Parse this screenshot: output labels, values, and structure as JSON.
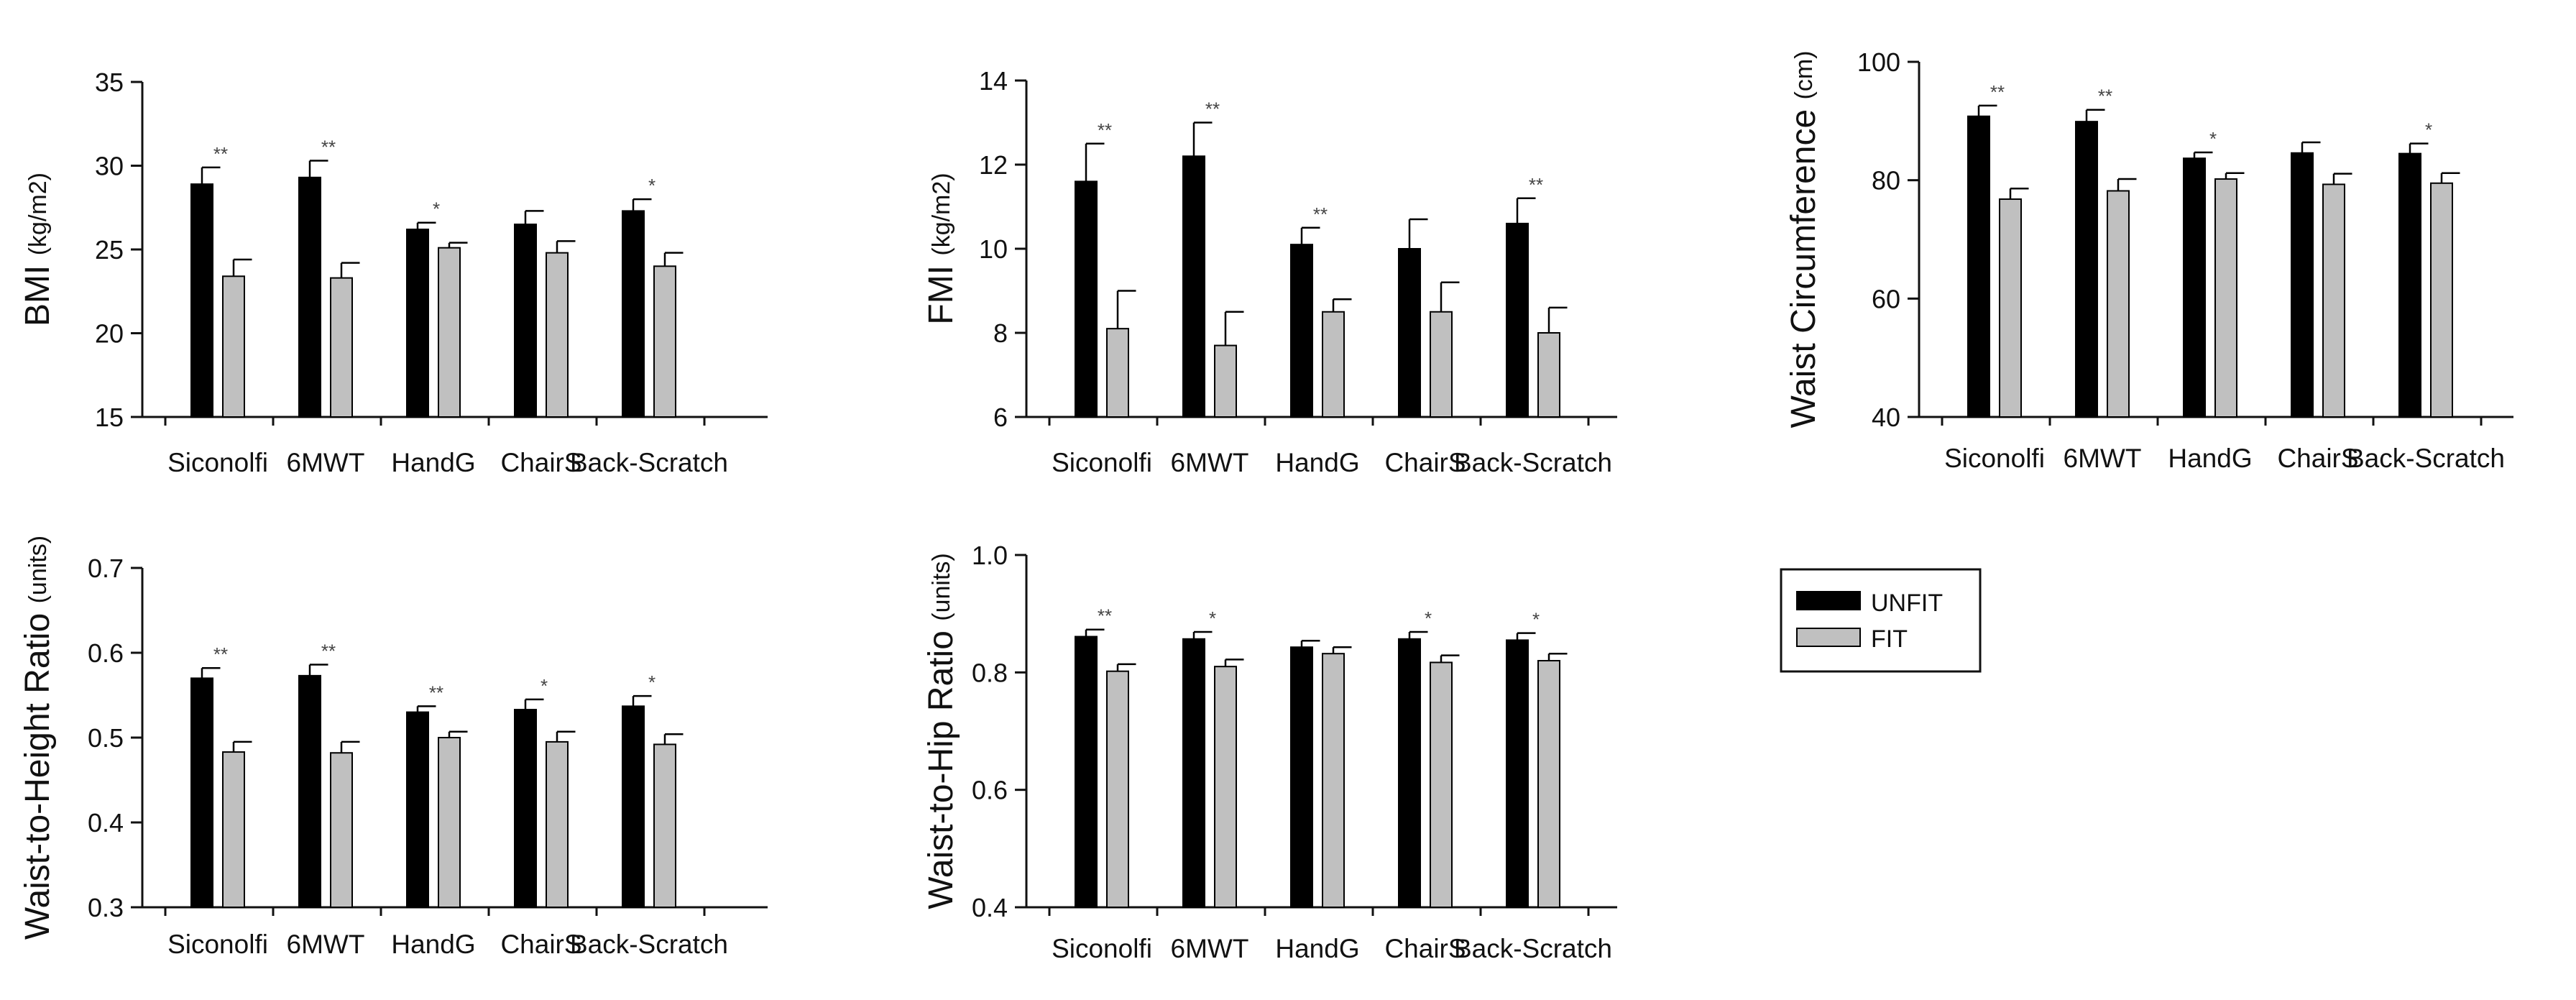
{
  "colors": {
    "unfit": "#000000",
    "fit": "#c0c0c0",
    "axis": "#111111"
  },
  "legend": {
    "items": [
      "UNFIT",
      "FIT"
    ],
    "placement": "right of bottom row"
  },
  "chart_data": [
    {
      "type": "bar",
      "ylabel": "BMI",
      "yunit": "(kg/m2)",
      "ylim": [
        15,
        35
      ],
      "yticks": [
        15,
        20,
        25,
        30,
        35
      ],
      "categories": [
        "Siconolfi",
        "6MWT",
        "HandG",
        "ChairS",
        "Back-Scratch"
      ],
      "series": [
        {
          "name": "UNFIT",
          "values": [
            28.9,
            29.3,
            26.2,
            26.5,
            27.3
          ],
          "errors": [
            1.0,
            1.0,
            0.4,
            0.8,
            0.7
          ]
        },
        {
          "name": "FIT",
          "values": [
            23.4,
            23.3,
            25.1,
            24.8,
            24.0
          ],
          "errors": [
            1.0,
            0.9,
            0.3,
            0.7,
            0.8
          ]
        }
      ],
      "significance": [
        "**",
        "**",
        "*",
        "",
        "*"
      ]
    },
    {
      "type": "bar",
      "ylabel": "FMI",
      "yunit": "(kg/m2)",
      "ylim": [
        6,
        14
      ],
      "yticks": [
        6,
        8,
        10,
        12,
        14
      ],
      "categories": [
        "Siconolfi",
        "6MWT",
        "HandG",
        "ChairS",
        "Back-Scratch"
      ],
      "series": [
        {
          "name": "UNFIT",
          "values": [
            11.6,
            12.2,
            10.1,
            10.0,
            10.6
          ],
          "errors": [
            0.9,
            0.8,
            0.4,
            0.7,
            0.6
          ]
        },
        {
          "name": "FIT",
          "values": [
            8.1,
            7.7,
            8.5,
            8.5,
            8.0
          ],
          "errors": [
            0.9,
            0.8,
            0.3,
            0.7,
            0.6
          ]
        }
      ],
      "significance": [
        "**",
        "**",
        "**",
        "",
        "**"
      ]
    },
    {
      "type": "bar",
      "ylabel": "Waist Circumference",
      "yunit": "(cm)",
      "ylim": [
        40,
        100
      ],
      "yticks": [
        40,
        60,
        80,
        100
      ],
      "categories": [
        "Siconolfi",
        "6MWT",
        "HandG",
        "ChairS",
        "Back-Scratch"
      ],
      "series": [
        {
          "name": "UNFIT",
          "values": [
            90.8,
            89.9,
            83.7,
            84.6,
            84.5
          ],
          "errors": [
            1.8,
            2.0,
            1.0,
            1.8,
            1.7
          ]
        },
        {
          "name": "FIT",
          "values": [
            76.8,
            78.2,
            80.2,
            79.3,
            79.5
          ],
          "errors": [
            1.8,
            2.0,
            1.0,
            1.8,
            1.7
          ]
        }
      ],
      "significance": [
        "**",
        "**",
        "*",
        "",
        "*"
      ]
    },
    {
      "type": "bar",
      "ylabel": "Waist-to-Height Ratio",
      "yunit": "(units)",
      "ylim": [
        0.3,
        0.7
      ],
      "yticks": [
        "0.3",
        "0.4",
        "0.5",
        "0.6",
        "0.7"
      ],
      "categories": [
        "Siconolfi",
        "6MWT",
        "HandG",
        "ChairS",
        "Back-Scratch"
      ],
      "series": [
        {
          "name": "UNFIT",
          "values": [
            0.57,
            0.573,
            0.53,
            0.533,
            0.537
          ],
          "errors": [
            0.012,
            0.013,
            0.007,
            0.012,
            0.012
          ]
        },
        {
          "name": "FIT",
          "values": [
            0.483,
            0.482,
            0.5,
            0.495,
            0.492
          ],
          "errors": [
            0.012,
            0.013,
            0.007,
            0.012,
            0.012
          ]
        }
      ],
      "significance": [
        "**",
        "**",
        "**",
        "*",
        "*"
      ]
    },
    {
      "type": "bar",
      "ylabel": "Waist-to-Hip Ratio",
      "yunit": "(units)",
      "ylim": [
        0.4,
        1.0
      ],
      "yticks": [
        "0.4",
        "0.6",
        "0.8",
        "1.0"
      ],
      "categories": [
        "Siconolfi",
        "6MWT",
        "HandG",
        "ChairS",
        "Back-Scratch"
      ],
      "series": [
        {
          "name": "UNFIT",
          "values": [
            0.861,
            0.857,
            0.843,
            0.857,
            0.855
          ],
          "errors": [
            0.012,
            0.012,
            0.011,
            0.012,
            0.012
          ]
        },
        {
          "name": "FIT",
          "values": [
            0.802,
            0.81,
            0.832,
            0.817,
            0.82
          ],
          "errors": [
            0.012,
            0.012,
            0.011,
            0.012,
            0.012
          ]
        }
      ],
      "significance": [
        "**",
        "*",
        "",
        "*",
        "*"
      ]
    }
  ]
}
